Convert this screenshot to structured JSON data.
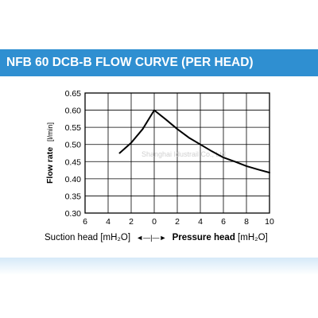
{
  "chart_data": {
    "type": "line",
    "title": "NFB 60 DCB-B FLOW CURVE (PER HEAD)",
    "ylabel": "Flow rate",
    "ylabel_unit": "[l/min]",
    "x_tick_labels": [
      "6",
      "4",
      "2",
      "0",
      "2",
      "4",
      "6",
      "8",
      "10"
    ],
    "x_ticks": [
      -6,
      -4,
      -2,
      0,
      2,
      4,
      6,
      8,
      10
    ],
    "xlim": [
      -6,
      10
    ],
    "y_ticks": [
      0.3,
      0.35,
      0.4,
      0.45,
      0.5,
      0.55,
      0.6,
      0.65
    ],
    "y_tick_labels": [
      "0.30",
      "0.35",
      "0.40",
      "0.45",
      "0.50",
      "0.55",
      "0.60",
      "0.65"
    ],
    "ylim": [
      0.3,
      0.65
    ],
    "grid": true,
    "x_axis_note": {
      "left_label": "Suction head [mH₂O]",
      "arrows": "◄—|—►",
      "right_label": "Pressure head",
      "right_unit": " [mH₂O]"
    },
    "series": [
      {
        "x": [
          -3,
          -2,
          -1,
          0,
          1,
          2,
          3,
          4,
          5,
          6,
          7,
          8,
          9,
          10
        ],
        "y": [
          0.475,
          0.505,
          0.545,
          0.6,
          0.573,
          0.545,
          0.52,
          0.5,
          0.48,
          0.462,
          0.45,
          0.437,
          0.427,
          0.418
        ],
        "color": "#000000"
      }
    ],
    "watermark": "Shanghai Idustrail Co., Ltd"
  }
}
